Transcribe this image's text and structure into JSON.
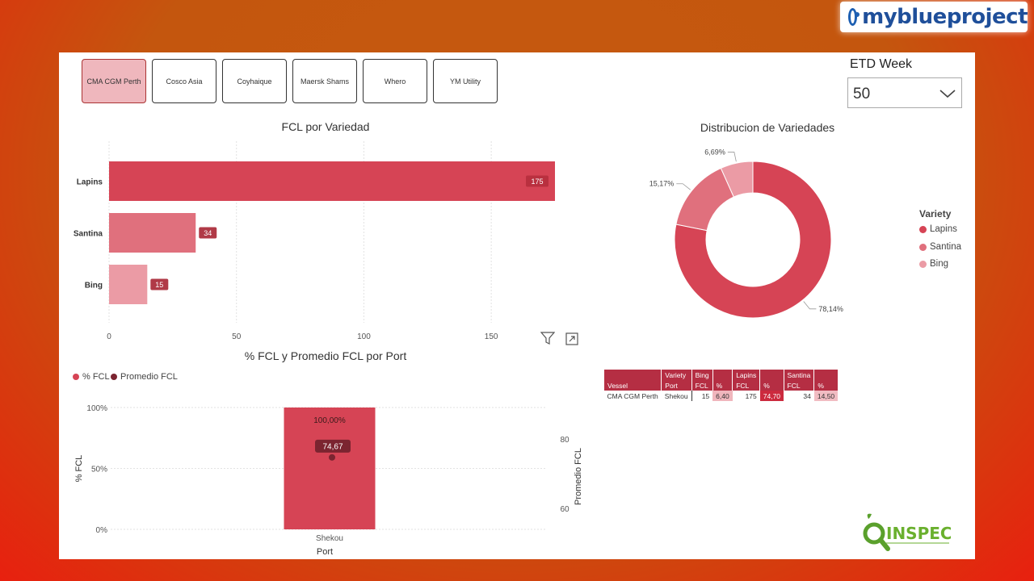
{
  "brand": {
    "text": "myblueproject"
  },
  "slicers": [
    {
      "label": "CMA CGM Perth",
      "active": true
    },
    {
      "label": "Cosco Asia",
      "active": false
    },
    {
      "label": "Coyhaique",
      "active": false
    },
    {
      "label": "Maersk Shams",
      "active": false
    },
    {
      "label": "Whero",
      "active": false
    },
    {
      "label": "YM Utility",
      "active": false
    }
  ],
  "etd": {
    "label": "ETD Week",
    "value": "50"
  },
  "colors": {
    "lapins": "#d64455",
    "santina": "#e0707d",
    "bing": "#eb9ba5",
    "dark": "#7b2430"
  },
  "chart_data": [
    {
      "type": "bar",
      "orientation": "horizontal",
      "title": "FCL por Variedad",
      "categories": [
        "Lapins",
        "Santina",
        "Bing"
      ],
      "values": [
        175,
        34,
        15
      ],
      "xticks": [
        0,
        50,
        100,
        150
      ],
      "xlim": [
        0,
        175
      ],
      "grid": true
    },
    {
      "type": "pie",
      "title": "Distribucion de Variedades",
      "donut": true,
      "legend_title": "Variety",
      "legend_position": "right",
      "slices": [
        {
          "label": "Lapins",
          "value": 78.14,
          "display": "78,14%"
        },
        {
          "label": "Santina",
          "value": 15.17,
          "display": "15,17%"
        },
        {
          "label": "Bing",
          "value": 6.69,
          "display": "6,69%"
        }
      ]
    },
    {
      "type": "bar",
      "title": "% FCL y Promedio FCL por Port",
      "xlabel": "Port",
      "ylabel": "% FCL",
      "y2label": "Promedio FCL",
      "categories": [
        "Shekou"
      ],
      "series": [
        {
          "name": "% FCL",
          "type": "bar",
          "values": [
            100
          ],
          "display": [
            "100,00%"
          ]
        },
        {
          "name": "Promedio FCL",
          "type": "line",
          "axis": "secondary",
          "values": [
            74.67
          ],
          "display": [
            "74,67"
          ]
        }
      ],
      "yticks": [
        "0%",
        "50%",
        "100%"
      ],
      "ylim": [
        0,
        100
      ],
      "y2ticks": [
        "60",
        "80"
      ],
      "y2lim": [
        54,
        89
      ],
      "legend_position": "top-left"
    },
    {
      "type": "table",
      "header_top": [
        "",
        "Variety",
        "Bing",
        "",
        "Lapins",
        "",
        "Santina",
        ""
      ],
      "header": [
        "Vessel",
        "Port",
        "FCL",
        "%",
        "FCL",
        "%",
        "FCL",
        "%"
      ],
      "rows": [
        [
          "CMA CGM Perth",
          "Shekou",
          "15",
          "6,40",
          "175",
          "74,70",
          "34",
          "14,50"
        ]
      ]
    }
  ]
}
